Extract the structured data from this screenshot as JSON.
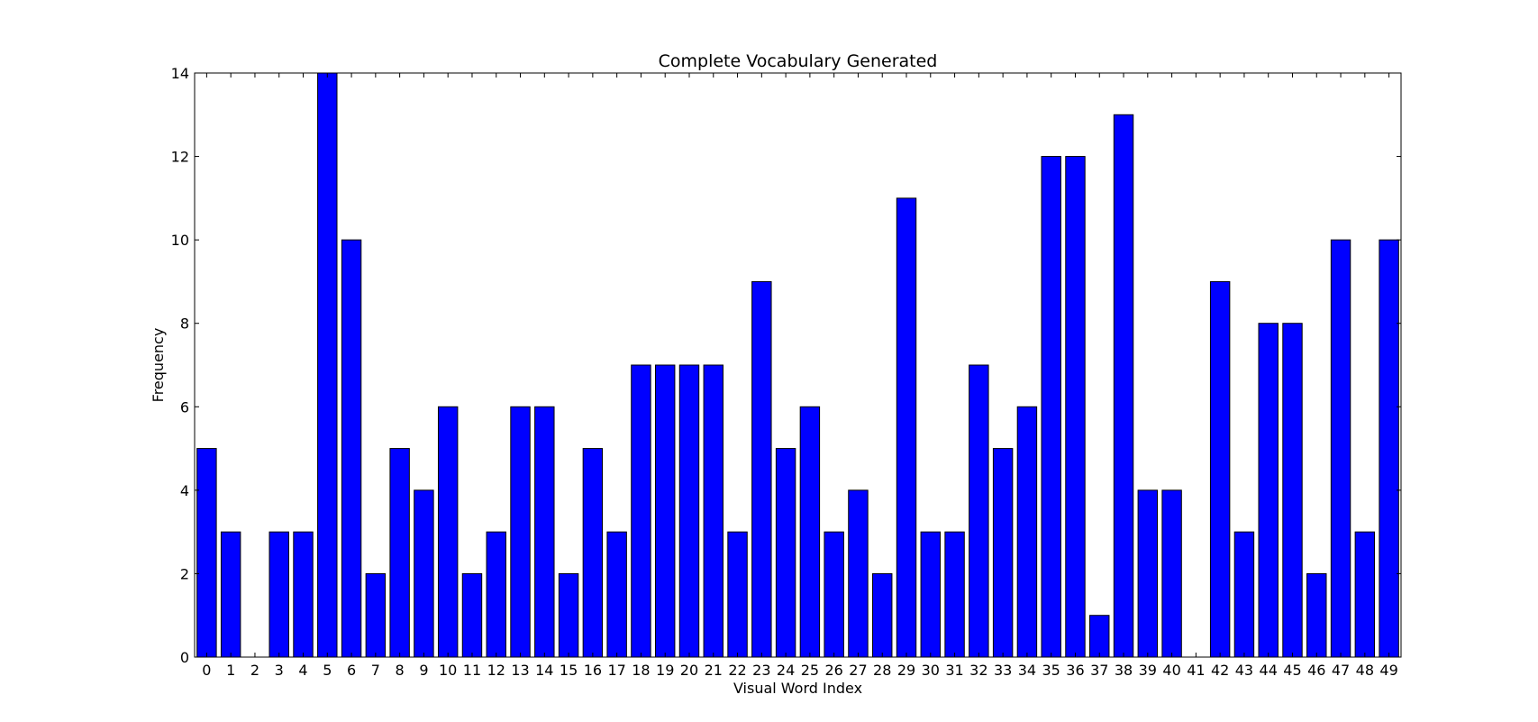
{
  "chart_data": {
    "type": "bar",
    "title": "Complete Vocabulary Generated",
    "xlabel": "Visual Word Index",
    "ylabel": "Frequency",
    "categories": [
      "0",
      "1",
      "2",
      "3",
      "4",
      "5",
      "6",
      "7",
      "8",
      "9",
      "10",
      "11",
      "12",
      "13",
      "14",
      "15",
      "16",
      "17",
      "18",
      "19",
      "20",
      "21",
      "22",
      "23",
      "24",
      "25",
      "26",
      "27",
      "28",
      "29",
      "30",
      "31",
      "32",
      "33",
      "34",
      "35",
      "36",
      "37",
      "38",
      "39",
      "40",
      "41",
      "42",
      "43",
      "44",
      "45",
      "46",
      "47",
      "48",
      "49"
    ],
    "values": [
      5,
      3,
      0,
      3,
      3,
      14,
      10,
      2,
      5,
      4,
      6,
      2,
      3,
      6,
      6,
      2,
      5,
      3,
      7,
      7,
      7,
      7,
      3,
      9,
      5,
      6,
      3,
      4,
      2,
      11,
      3,
      3,
      7,
      5,
      6,
      12,
      12,
      1,
      13,
      4,
      4,
      0,
      9,
      3,
      8,
      8,
      2,
      10,
      3,
      10
    ],
    "ylim": [
      0,
      14
    ],
    "yticks": [
      0,
      2,
      4,
      6,
      8,
      10,
      12,
      14
    ],
    "bar_color": "#0000ff",
    "edge_color": "#000000",
    "grid": false,
    "legend": "none"
  }
}
